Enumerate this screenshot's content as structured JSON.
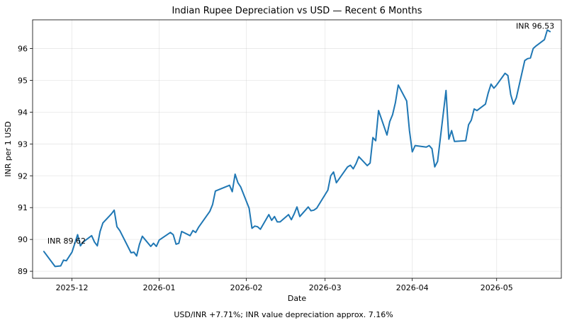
{
  "chart_data": {
    "type": "line",
    "title": "Indian Rupee Depreciation vs USD — Recent 6 Months",
    "xlabel": "Date",
    "ylabel": "INR per 1 USD",
    "footnote": "USD/INR +7.71%; INR value depreciation approx. 7.16%",
    "xlim": [
      "2025-11-17",
      "2026-05-24"
    ],
    "ylim": [
      88.78,
      96.9
    ],
    "x_ticks": [
      "2025-12-01",
      "2026-01-01",
      "2026-02-01",
      "2026-03-01",
      "2026-04-01",
      "2026-05-01"
    ],
    "x_tick_labels": [
      "2025-12",
      "2026-01",
      "2026-02",
      "2026-03",
      "2026-04",
      "2026-05"
    ],
    "y_ticks": [
      89,
      90,
      91,
      92,
      93,
      94,
      95,
      96
    ],
    "y_tick_labels": [
      "89",
      "90",
      "91",
      "92",
      "93",
      "94",
      "95",
      "96"
    ],
    "grid": true,
    "line_color": "#1f77b4",
    "annotations": [
      {
        "text": "INR 89.62",
        "x": "2025-11-21",
        "y": 89.62
      },
      {
        "text": "INR 96.53",
        "x": "2026-05-21",
        "y": 96.53
      }
    ],
    "series": [
      {
        "x": [
          "2025-11-21",
          "2025-11-25",
          "2025-11-27",
          "2025-11-28",
          "2025-11-29",
          "2025-12-01",
          "2025-12-03",
          "2025-12-04",
          "2025-12-05",
          "2025-12-08",
          "2025-12-09",
          "2025-12-10",
          "2025-12-11",
          "2025-12-12",
          "2025-12-15",
          "2025-12-16",
          "2025-12-17",
          "2025-12-18",
          "2025-12-22",
          "2025-12-23",
          "2025-12-24",
          "2025-12-25",
          "2025-12-26",
          "2025-12-29",
          "2025-12-30",
          "2025-12-31",
          "2026-01-01",
          "2026-01-05",
          "2026-01-06",
          "2026-01-07",
          "2026-01-08",
          "2026-01-09",
          "2026-01-12",
          "2026-01-13",
          "2026-01-14",
          "2026-01-15",
          "2026-01-19",
          "2026-01-20",
          "2026-01-21",
          "2026-01-26",
          "2026-01-27",
          "2026-01-28",
          "2026-01-29",
          "2026-01-30",
          "2026-02-02",
          "2026-02-03",
          "2026-02-04",
          "2026-02-05",
          "2026-02-06",
          "2026-02-09",
          "2026-02-10",
          "2026-02-11",
          "2026-02-12",
          "2026-02-13",
          "2026-02-16",
          "2026-02-17",
          "2026-02-18",
          "2026-02-19",
          "2026-02-20",
          "2026-02-23",
          "2026-02-24",
          "2026-02-25",
          "2026-02-26",
          "2026-03-02",
          "2026-03-03",
          "2026-03-04",
          "2026-03-05",
          "2026-03-09",
          "2026-03-10",
          "2026-03-11",
          "2026-03-12",
          "2026-03-13",
          "2026-03-16",
          "2026-03-17",
          "2026-03-18",
          "2026-03-19",
          "2026-03-20",
          "2026-03-23",
          "2026-03-24",
          "2026-03-25",
          "2026-03-26",
          "2026-03-27",
          "2026-03-30",
          "2026-03-31",
          "2026-04-01",
          "2026-04-02",
          "2026-04-06",
          "2026-04-07",
          "2026-04-08",
          "2026-04-09",
          "2026-04-10",
          "2026-04-13",
          "2026-04-14",
          "2026-04-15",
          "2026-04-16",
          "2026-04-20",
          "2026-04-21",
          "2026-04-22",
          "2026-04-23",
          "2026-04-24",
          "2026-04-27",
          "2026-04-28",
          "2026-04-29",
          "2026-04-30",
          "2026-05-01",
          "2026-05-04",
          "2026-05-05",
          "2026-05-06",
          "2026-05-07",
          "2026-05-08",
          "2026-05-11",
          "2026-05-12",
          "2026-05-13",
          "2026-05-14",
          "2026-05-15",
          "2026-05-18",
          "2026-05-19",
          "2026-05-20"
        ],
        "y": [
          89.62,
          89.15,
          89.17,
          89.35,
          89.33,
          89.6,
          90.15,
          89.8,
          89.92,
          90.12,
          89.92,
          89.8,
          90.25,
          90.52,
          90.8,
          90.92,
          90.4,
          90.28,
          89.58,
          89.6,
          89.48,
          89.85,
          90.1,
          89.78,
          89.88,
          89.78,
          89.98,
          90.22,
          90.15,
          89.85,
          89.88,
          90.25,
          90.12,
          90.28,
          90.22,
          90.38,
          90.88,
          91.1,
          91.52,
          91.7,
          91.5,
          92.05,
          91.78,
          91.65,
          90.98,
          90.35,
          90.42,
          90.4,
          90.32,
          90.78,
          90.6,
          90.72,
          90.55,
          90.55,
          90.78,
          90.62,
          90.8,
          91.02,
          90.72,
          91.02,
          90.9,
          90.92,
          90.98,
          91.55,
          92.0,
          92.12,
          91.78,
          92.28,
          92.33,
          92.22,
          92.38,
          92.6,
          92.32,
          92.4,
          93.2,
          93.1,
          94.05,
          93.28,
          93.7,
          93.92,
          94.3,
          94.85,
          94.35,
          93.42,
          92.75,
          92.95,
          92.9,
          92.95,
          92.85,
          92.28,
          92.45,
          94.68,
          93.15,
          93.42,
          93.08,
          93.1,
          93.6,
          93.75,
          94.1,
          94.05,
          94.25,
          94.6,
          94.88,
          94.75,
          94.85,
          95.22,
          95.15,
          94.55,
          94.25,
          94.45,
          95.62,
          95.68,
          95.7,
          96.0,
          96.08,
          96.28,
          96.58,
          96.53
        ]
      }
    ]
  }
}
